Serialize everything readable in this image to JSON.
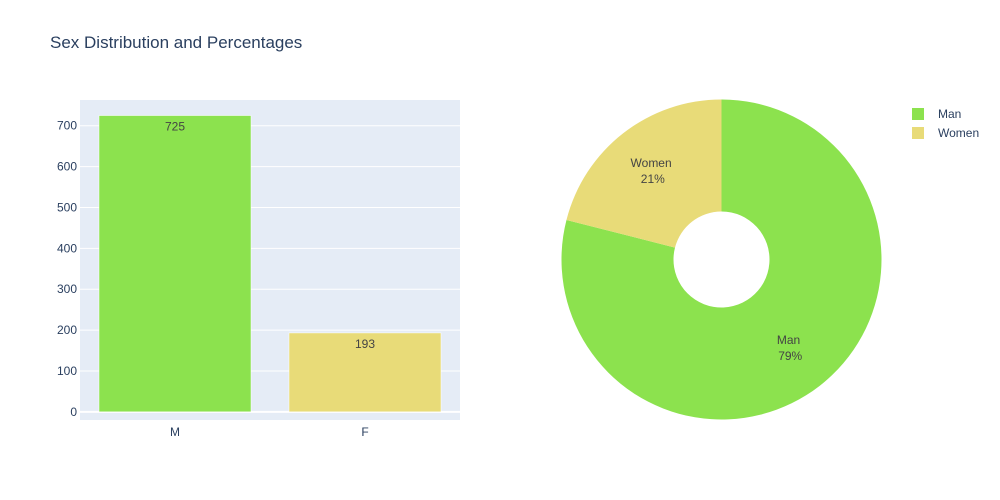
{
  "title": "Sex Distribution and Percentages",
  "colors": {
    "background": "#ffffff",
    "plot_background": "#e5ecf6",
    "grid": "#ffffff",
    "text": "#2a3f5f",
    "data_label": "#444444"
  },
  "chart_data": [
    {
      "type": "bar",
      "categories": [
        "M",
        "F"
      ],
      "values": [
        725,
        193
      ],
      "colors": [
        "#8ce24e",
        "#e8db78"
      ],
      "data_labels": [
        "725",
        "193"
      ],
      "yticks": [
        "0",
        "100",
        "200",
        "300",
        "400",
        "500",
        "600",
        "700"
      ],
      "ylim": [
        -20,
        763
      ],
      "grid": true
    },
    {
      "type": "pie",
      "hole": true,
      "labels": [
        "Man",
        "Women"
      ],
      "values": [
        725,
        193
      ],
      "percent_labels": [
        "79%",
        "21%"
      ],
      "colors": [
        "#8ce24e",
        "#e8db78"
      ],
      "legend": {
        "position": "top-right",
        "items": [
          {
            "label": "Man",
            "color": "#8ce24e"
          },
          {
            "label": "Women",
            "color": "#e8db78"
          }
        ]
      }
    }
  ]
}
